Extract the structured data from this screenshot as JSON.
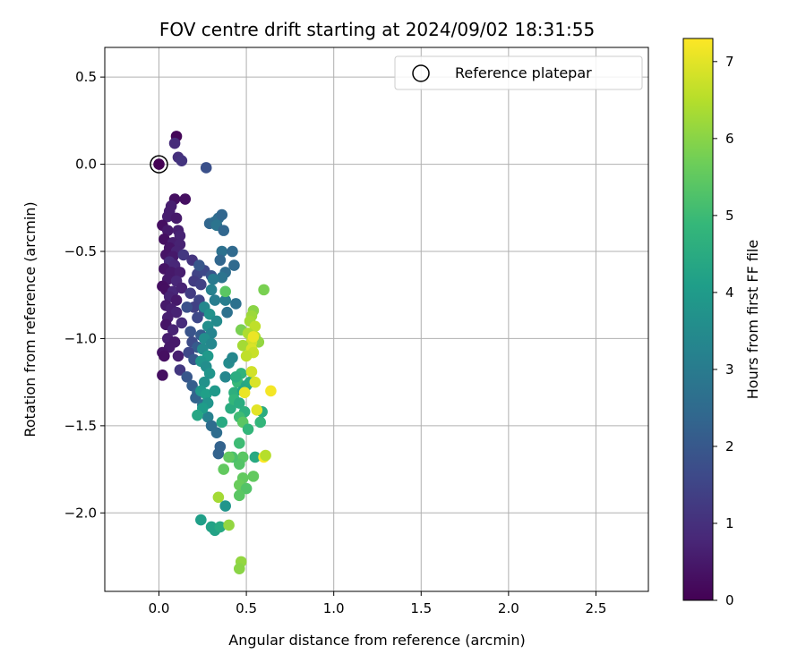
{
  "chart_data": {
    "type": "scatter",
    "title": "FOV centre drift starting at 2024/09/02 18:31:55",
    "xlabel": "Angular distance from reference (arcmin)",
    "ylabel": "Rotation from reference (arcmin)",
    "xlim": [
      -0.31,
      2.8
    ],
    "ylim": [
      -2.45,
      0.67
    ],
    "xticks": [
      0.0,
      0.5,
      1.0,
      1.5,
      2.0,
      2.5
    ],
    "xtick_labels": [
      "0.0",
      "0.5",
      "1.0",
      "1.5",
      "2.0",
      "2.5"
    ],
    "yticks": [
      0.5,
      0.0,
      -0.5,
      -1.0,
      -1.5,
      -2.0
    ],
    "ytick_labels": [
      "0.5",
      "0.0",
      "−0.5",
      "−1.0",
      "−1.5",
      "−2.0"
    ],
    "grid": true,
    "legend": {
      "position": "upper-right",
      "entries": [
        "Reference platepar"
      ]
    },
    "reference_point": {
      "x": 0.0,
      "y": 0.0
    },
    "colorbar": {
      "label": "Hours from first FF file",
      "range": [
        0,
        7.3
      ],
      "ticks": [
        0,
        1,
        2,
        3,
        4,
        5,
        6,
        7
      ],
      "tick_labels": [
        "0",
        "1",
        "2",
        "3",
        "4",
        "5",
        "6",
        "7"
      ],
      "colormap": "viridis"
    },
    "series": [
      {
        "points": [
          {
            "x": 0.1,
            "y": 0.16,
            "c": 0.1
          },
          {
            "x": 0.0,
            "y": 0.0,
            "c": 0.0
          },
          {
            "x": 0.09,
            "y": 0.12,
            "c": 0.9
          },
          {
            "x": 0.11,
            "y": 0.04,
            "c": 1.0
          },
          {
            "x": 0.13,
            "y": 0.02,
            "c": 1.1
          },
          {
            "x": 0.27,
            "y": -0.02,
            "c": 1.8
          },
          {
            "x": 0.09,
            "y": -0.2,
            "c": 0.3
          },
          {
            "x": 0.15,
            "y": -0.2,
            "c": 0.3
          },
          {
            "x": 0.07,
            "y": -0.24,
            "c": 0.6
          },
          {
            "x": 0.06,
            "y": -0.27,
            "c": 0.6
          },
          {
            "x": 0.05,
            "y": -0.3,
            "c": 0.6
          },
          {
            "x": 0.1,
            "y": -0.31,
            "c": 0.5
          },
          {
            "x": 0.02,
            "y": -0.35,
            "c": 0.3
          },
          {
            "x": 0.05,
            "y": -0.38,
            "c": 0.5
          },
          {
            "x": 0.11,
            "y": -0.38,
            "c": 0.6
          },
          {
            "x": 0.12,
            "y": -0.41,
            "c": 0.7
          },
          {
            "x": 0.03,
            "y": -0.43,
            "c": 0.3
          },
          {
            "x": 0.08,
            "y": -0.45,
            "c": 0.6
          },
          {
            "x": 0.12,
            "y": -0.46,
            "c": 0.7
          },
          {
            "x": 0.06,
            "y": -0.48,
            "c": 0.4
          },
          {
            "x": 0.1,
            "y": -0.5,
            "c": 0.7
          },
          {
            "x": 0.04,
            "y": -0.52,
            "c": 0.4
          },
          {
            "x": 0.08,
            "y": -0.53,
            "c": 0.5
          },
          {
            "x": 0.14,
            "y": -0.52,
            "c": 1.2
          },
          {
            "x": 0.06,
            "y": -0.56,
            "c": 0.9
          },
          {
            "x": 0.09,
            "y": -0.58,
            "c": 0.8
          },
          {
            "x": 0.03,
            "y": -0.6,
            "c": 0.4
          },
          {
            "x": 0.07,
            "y": -0.62,
            "c": 0.5
          },
          {
            "x": 0.12,
            "y": -0.62,
            "c": 0.6
          },
          {
            "x": 0.05,
            "y": -0.66,
            "c": 0.5
          },
          {
            "x": 0.1,
            "y": -0.67,
            "c": 0.8
          },
          {
            "x": 0.02,
            "y": -0.7,
            "c": 0.3
          },
          {
            "x": 0.04,
            "y": -0.72,
            "c": 0.3
          },
          {
            "x": 0.08,
            "y": -0.73,
            "c": 0.8
          },
          {
            "x": 0.13,
            "y": -0.71,
            "c": 0.7
          },
          {
            "x": 0.06,
            "y": -0.76,
            "c": 0.7
          },
          {
            "x": 0.1,
            "y": -0.78,
            "c": 0.5
          },
          {
            "x": 0.04,
            "y": -0.81,
            "c": 0.5
          },
          {
            "x": 0.07,
            "y": -0.83,
            "c": 0.6
          },
          {
            "x": 0.1,
            "y": -0.85,
            "c": 0.7
          },
          {
            "x": 0.05,
            "y": -0.88,
            "c": 0.6
          },
          {
            "x": 0.04,
            "y": -0.92,
            "c": 0.4
          },
          {
            "x": 0.13,
            "y": -0.91,
            "c": 0.9
          },
          {
            "x": 0.08,
            "y": -0.95,
            "c": 0.7
          },
          {
            "x": 0.05,
            "y": -1.0,
            "c": 0.6
          },
          {
            "x": 0.09,
            "y": -1.02,
            "c": 0.5
          },
          {
            "x": 0.06,
            "y": -1.05,
            "c": 0.5
          },
          {
            "x": 0.02,
            "y": -1.08,
            "c": 0.4
          },
          {
            "x": 0.03,
            "y": -1.1,
            "c": 0.3
          },
          {
            "x": 0.11,
            "y": -1.1,
            "c": 0.6
          },
          {
            "x": 0.02,
            "y": -1.21,
            "c": 0.3
          },
          {
            "x": 0.12,
            "y": -1.18,
            "c": 1.2
          },
          {
            "x": 0.19,
            "y": -0.55,
            "c": 1.1
          },
          {
            "x": 0.22,
            "y": -0.63,
            "c": 1.5
          },
          {
            "x": 0.26,
            "y": -0.61,
            "c": 1.6
          },
          {
            "x": 0.2,
            "y": -0.67,
            "c": 1.3
          },
          {
            "x": 0.24,
            "y": -0.69,
            "c": 1.4
          },
          {
            "x": 0.3,
            "y": -0.64,
            "c": 1.9
          },
          {
            "x": 0.18,
            "y": -0.74,
            "c": 1.3
          },
          {
            "x": 0.23,
            "y": -0.78,
            "c": 1.5
          },
          {
            "x": 0.2,
            "y": -0.82,
            "c": 1.4
          },
          {
            "x": 0.26,
            "y": -0.84,
            "c": 1.7
          },
          {
            "x": 0.16,
            "y": -0.82,
            "c": 1.8
          },
          {
            "x": 0.22,
            "y": -0.88,
            "c": 1.6
          },
          {
            "x": 0.18,
            "y": -0.96,
            "c": 1.9
          },
          {
            "x": 0.24,
            "y": -0.98,
            "c": 2.1
          },
          {
            "x": 0.19,
            "y": -1.02,
            "c": 1.7
          },
          {
            "x": 0.22,
            "y": -1.05,
            "c": 2.1
          },
          {
            "x": 0.17,
            "y": -1.08,
            "c": 1.6
          },
          {
            "x": 0.2,
            "y": -1.12,
            "c": 2.0
          },
          {
            "x": 0.16,
            "y": -1.22,
            "c": 2.0
          },
          {
            "x": 0.19,
            "y": -1.27,
            "c": 2.2
          },
          {
            "x": 0.22,
            "y": -1.31,
            "c": 2.4
          },
          {
            "x": 0.21,
            "y": -1.34,
            "c": 2.3
          },
          {
            "x": 0.25,
            "y": -1.38,
            "c": 2.6
          },
          {
            "x": 0.28,
            "y": -1.45,
            "c": 3.2
          },
          {
            "x": 0.3,
            "y": -1.5,
            "c": 2.6
          },
          {
            "x": 0.33,
            "y": -1.54,
            "c": 2.6
          },
          {
            "x": 0.35,
            "y": -1.62,
            "c": 2.3
          },
          {
            "x": 0.34,
            "y": -1.66,
            "c": 2.3
          },
          {
            "x": 0.23,
            "y": -0.58,
            "c": 2.0
          },
          {
            "x": 0.29,
            "y": -0.34,
            "c": 2.4
          },
          {
            "x": 0.32,
            "y": -0.33,
            "c": 2.6
          },
          {
            "x": 0.34,
            "y": -0.31,
            "c": 2.6
          },
          {
            "x": 0.36,
            "y": -0.29,
            "c": 2.4
          },
          {
            "x": 0.33,
            "y": -0.35,
            "c": 2.8
          },
          {
            "x": 0.37,
            "y": -0.38,
            "c": 2.4
          },
          {
            "x": 0.36,
            "y": -0.5,
            "c": 2.7
          },
          {
            "x": 0.42,
            "y": -0.5,
            "c": 2.5
          },
          {
            "x": 0.35,
            "y": -0.55,
            "c": 2.4
          },
          {
            "x": 0.43,
            "y": -0.58,
            "c": 2.5
          },
          {
            "x": 0.38,
            "y": -0.62,
            "c": 2.6
          },
          {
            "x": 0.36,
            "y": -0.65,
            "c": 2.8
          },
          {
            "x": 0.31,
            "y": -0.66,
            "c": 3.0
          },
          {
            "x": 0.3,
            "y": -0.72,
            "c": 3.2
          },
          {
            "x": 0.32,
            "y": -0.78,
            "c": 3.1
          },
          {
            "x": 0.38,
            "y": -0.78,
            "c": 3.1
          },
          {
            "x": 0.44,
            "y": -0.8,
            "c": 2.7
          },
          {
            "x": 0.39,
            "y": -0.85,
            "c": 2.7
          },
          {
            "x": 0.26,
            "y": -0.82,
            "c": 3.4
          },
          {
            "x": 0.29,
            "y": -0.86,
            "c": 3.7
          },
          {
            "x": 0.33,
            "y": -0.9,
            "c": 3.5
          },
          {
            "x": 0.28,
            "y": -0.93,
            "c": 3.6
          },
          {
            "x": 0.3,
            "y": -0.97,
            "c": 3.3
          },
          {
            "x": 0.26,
            "y": -1.0,
            "c": 3.6
          },
          {
            "x": 0.3,
            "y": -1.03,
            "c": 3.4
          },
          {
            "x": 0.25,
            "y": -1.06,
            "c": 3.5
          },
          {
            "x": 0.28,
            "y": -1.1,
            "c": 3.9
          },
          {
            "x": 0.24,
            "y": -1.13,
            "c": 3.8
          },
          {
            "x": 0.27,
            "y": -1.16,
            "c": 3.6
          },
          {
            "x": 0.29,
            "y": -1.2,
            "c": 3.8
          },
          {
            "x": 0.26,
            "y": -1.25,
            "c": 3.7
          },
          {
            "x": 0.24,
            "y": -1.3,
            "c": 3.9
          },
          {
            "x": 0.27,
            "y": -1.32,
            "c": 4.1
          },
          {
            "x": 0.32,
            "y": -1.3,
            "c": 3.9
          },
          {
            "x": 0.28,
            "y": -1.37,
            "c": 3.8
          },
          {
            "x": 0.25,
            "y": -1.4,
            "c": 4.0
          },
          {
            "x": 0.22,
            "y": -1.44,
            "c": 4.3
          },
          {
            "x": 0.36,
            "y": -1.48,
            "c": 4.4
          },
          {
            "x": 0.38,
            "y": -1.22,
            "c": 3.4
          },
          {
            "x": 0.4,
            "y": -1.14,
            "c": 3.5
          },
          {
            "x": 0.42,
            "y": -1.11,
            "c": 3.4
          },
          {
            "x": 0.41,
            "y": -1.4,
            "c": 4.5
          },
          {
            "x": 0.43,
            "y": -1.31,
            "c": 4.6
          },
          {
            "x": 0.45,
            "y": -1.25,
            "c": 4.9
          },
          {
            "x": 0.47,
            "y": -1.2,
            "c": 4.7
          },
          {
            "x": 0.43,
            "y": -1.35,
            "c": 4.8
          },
          {
            "x": 0.46,
            "y": -1.37,
            "c": 4.5
          },
          {
            "x": 0.48,
            "y": -1.3,
            "c": 4.2
          },
          {
            "x": 0.5,
            "y": -1.27,
            "c": 4.3
          },
          {
            "x": 0.52,
            "y": -1.25,
            "c": 4.4
          },
          {
            "x": 0.44,
            "y": -1.22,
            "c": 4.5
          },
          {
            "x": 0.49,
            "y": -1.42,
            "c": 4.6
          },
          {
            "x": 0.46,
            "y": -1.45,
            "c": 5.0
          },
          {
            "x": 0.48,
            "y": -1.48,
            "c": 5.4
          },
          {
            "x": 0.51,
            "y": -1.52,
            "c": 4.8
          },
          {
            "x": 0.59,
            "y": -1.42,
            "c": 4.5
          },
          {
            "x": 0.58,
            "y": -1.48,
            "c": 4.8
          },
          {
            "x": 0.46,
            "y": -1.6,
            "c": 5.0
          },
          {
            "x": 0.48,
            "y": -1.68,
            "c": 5.4
          },
          {
            "x": 0.46,
            "y": -1.72,
            "c": 5.3
          },
          {
            "x": 0.42,
            "y": -1.68,
            "c": 5.2
          },
          {
            "x": 0.4,
            "y": -1.68,
            "c": 5.5
          },
          {
            "x": 0.55,
            "y": -1.68,
            "c": 4.4
          },
          {
            "x": 0.48,
            "y": -1.8,
            "c": 5.5
          },
          {
            "x": 0.46,
            "y": -1.84,
            "c": 5.6
          },
          {
            "x": 0.5,
            "y": -1.86,
            "c": 5.3
          },
          {
            "x": 0.54,
            "y": -1.79,
            "c": 5.5
          },
          {
            "x": 0.46,
            "y": -1.9,
            "c": 5.4
          },
          {
            "x": 0.37,
            "y": -1.75,
            "c": 5.5
          },
          {
            "x": 0.24,
            "y": -2.04,
            "c": 4.1
          },
          {
            "x": 0.3,
            "y": -2.08,
            "c": 4.2
          },
          {
            "x": 0.32,
            "y": -2.1,
            "c": 4.2
          },
          {
            "x": 0.35,
            "y": -2.08,
            "c": 4.4
          },
          {
            "x": 0.4,
            "y": -2.07,
            "c": 6.1
          },
          {
            "x": 0.38,
            "y": -1.96,
            "c": 3.8
          },
          {
            "x": 0.34,
            "y": -1.91,
            "c": 6.3
          },
          {
            "x": 0.47,
            "y": -2.28,
            "c": 6.1
          },
          {
            "x": 0.46,
            "y": -2.32,
            "c": 6.0
          },
          {
            "x": 0.38,
            "y": -0.73,
            "c": 5.4
          },
          {
            "x": 0.6,
            "y": -0.72,
            "c": 5.8
          },
          {
            "x": 0.54,
            "y": -0.84,
            "c": 6.0
          },
          {
            "x": 0.53,
            "y": -0.87,
            "c": 6.2
          },
          {
            "x": 0.52,
            "y": -0.9,
            "c": 6.3
          },
          {
            "x": 0.47,
            "y": -0.95,
            "c": 5.8
          },
          {
            "x": 0.55,
            "y": -0.93,
            "c": 6.6
          },
          {
            "x": 0.51,
            "y": -0.97,
            "c": 6.4
          },
          {
            "x": 0.55,
            "y": -0.99,
            "c": 6.5
          },
          {
            "x": 0.57,
            "y": -1.02,
            "c": 6.1
          },
          {
            "x": 0.53,
            "y": -1.02,
            "c": 6.8
          },
          {
            "x": 0.48,
            "y": -1.04,
            "c": 6.3
          },
          {
            "x": 0.53,
            "y": -1.06,
            "c": 6.9
          },
          {
            "x": 0.54,
            "y": -1.08,
            "c": 6.7
          },
          {
            "x": 0.5,
            "y": -1.1,
            "c": 6.6
          },
          {
            "x": 0.54,
            "y": -0.99,
            "c": 7.1
          },
          {
            "x": 0.55,
            "y": -1.25,
            "c": 6.9
          },
          {
            "x": 0.53,
            "y": -1.19,
            "c": 6.8
          },
          {
            "x": 0.49,
            "y": -1.31,
            "c": 7.1
          },
          {
            "x": 0.56,
            "y": -1.41,
            "c": 7.0
          },
          {
            "x": 0.64,
            "y": -1.3,
            "c": 7.2
          },
          {
            "x": 0.6,
            "y": -1.68,
            "c": 7.3
          },
          {
            "x": 0.61,
            "y": -1.67,
            "c": 6.5
          }
        ]
      }
    ]
  }
}
